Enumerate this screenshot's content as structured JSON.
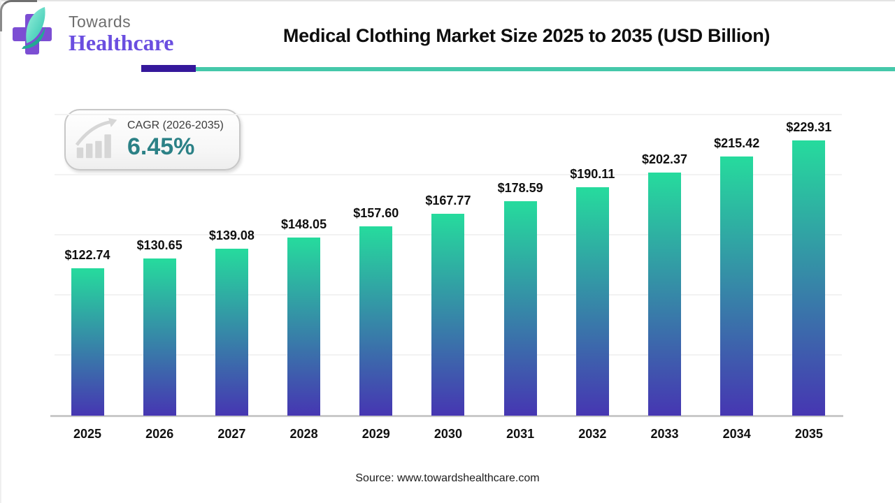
{
  "header": {
    "logo": {
      "line1": "Towards",
      "line2": "Healthcare"
    },
    "title": "Medical Clothing Market Size 2025 to 2035 (USD Billion)"
  },
  "cagr": {
    "label": "CAGR (2026-2035)",
    "value": "6.45%"
  },
  "source": "Source: www.towardshealthcare.com",
  "colors": {
    "rule_purple": "#35189b",
    "rule_teal": "#45c8aa",
    "cagr_value": "#2b8186",
    "logo_cross_purple": "#7c4ed3",
    "logo_leaf_teal": "#2cc3ae",
    "bar_top": "#26db9d",
    "bar_bottom": "#4636b2",
    "axis_gray": "#c9c9c9"
  },
  "chart_data": {
    "type": "bar",
    "title": "Medical Clothing Market Size 2025 to 2035 (USD Billion)",
    "categories": [
      "2025",
      "2026",
      "2027",
      "2028",
      "2029",
      "2030",
      "2031",
      "2032",
      "2033",
      "2034",
      "2035"
    ],
    "values": [
      122.74,
      130.65,
      139.08,
      148.05,
      157.6,
      167.77,
      178.59,
      190.11,
      202.37,
      215.42,
      229.31
    ],
    "labels": [
      "$122.74",
      "$130.65",
      "$139.08",
      "$148.05",
      "$157.60",
      "$167.77",
      "$178.59",
      "$190.11",
      "$202.37",
      "$215.42",
      "$229.31"
    ],
    "xlabel": "",
    "ylabel": "",
    "ylim": [
      0,
      250
    ],
    "grid_step": 50,
    "grid": "horizontal-faint",
    "legend_position": "none",
    "bar_gradient": [
      "#26db9d",
      "#4636b2"
    ]
  }
}
